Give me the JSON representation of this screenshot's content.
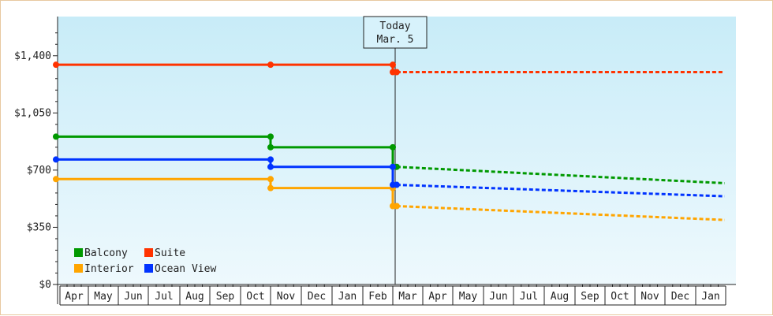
{
  "chart_data": {
    "type": "line",
    "y_ticks": [
      "$0",
      "$350",
      "$700",
      "$1,050",
      "$1,400"
    ],
    "ylim": [
      0,
      1640
    ],
    "x_labels": [
      "Apr",
      "May",
      "Jun",
      "Jul",
      "Aug",
      "Sep",
      "Oct",
      "Nov",
      "Dec",
      "Jan",
      "Feb",
      "Mar",
      "Apr",
      "May",
      "Jun",
      "Jul",
      "Aug",
      "Sep",
      "Oct",
      "Nov",
      "Dec",
      "Jan"
    ],
    "today": {
      "line1": "Today",
      "line2": "Mar. 5"
    },
    "legend_position": "bottom-left",
    "grid": false,
    "background_gradient": [
      "#c8ecf8",
      "#eef9fd"
    ],
    "series": [
      {
        "name": "Balcony",
        "color": "#009900",
        "historical": [
          {
            "x": "Apr 1",
            "y": 905
          },
          {
            "x": "Nov 1",
            "y": 905
          },
          {
            "x": "Nov 1",
            "y": 840
          },
          {
            "x": "Mar 1",
            "y": 840
          },
          {
            "x": "Mar 1",
            "y": 720
          },
          {
            "x": "Mar 5",
            "y": 720
          }
        ],
        "forecast": [
          {
            "x": "Mar 5",
            "y": 720
          },
          {
            "x": "Jan 31",
            "y": 620
          }
        ]
      },
      {
        "name": "Suite",
        "color": "#ff3300",
        "historical": [
          {
            "x": "Apr 1",
            "y": 1345
          },
          {
            "x": "Nov 1",
            "y": 1345
          },
          {
            "x": "Mar 1",
            "y": 1345
          },
          {
            "x": "Mar 1",
            "y": 1300
          },
          {
            "x": "Mar 5",
            "y": 1300
          }
        ],
        "forecast": [
          {
            "x": "Mar 5",
            "y": 1300
          },
          {
            "x": "Jan 31",
            "y": 1300
          }
        ]
      },
      {
        "name": "Interior",
        "color": "#ffa500",
        "historical": [
          {
            "x": "Apr 1",
            "y": 645
          },
          {
            "x": "Nov 1",
            "y": 645
          },
          {
            "x": "Nov 1",
            "y": 590
          },
          {
            "x": "Mar 1",
            "y": 590
          },
          {
            "x": "Mar 1",
            "y": 480
          },
          {
            "x": "Mar 5",
            "y": 480
          }
        ],
        "forecast": [
          {
            "x": "Mar 5",
            "y": 480
          },
          {
            "x": "Jan 31",
            "y": 395
          }
        ]
      },
      {
        "name": "Ocean View",
        "color": "#0033ff",
        "historical": [
          {
            "x": "Apr 1",
            "y": 765
          },
          {
            "x": "Nov 1",
            "y": 765
          },
          {
            "x": "Nov 1",
            "y": 720
          },
          {
            "x": "Mar 1",
            "y": 720
          },
          {
            "x": "Mar 1",
            "y": 610
          },
          {
            "x": "Mar 5",
            "y": 610
          }
        ],
        "forecast": [
          {
            "x": "Mar 5",
            "y": 610
          },
          {
            "x": "Jan 31",
            "y": 540
          }
        ]
      }
    ],
    "legend": [
      {
        "name": "Balcony",
        "color": "#009900"
      },
      {
        "name": "Suite",
        "color": "#ff3300"
      },
      {
        "name": "Interior",
        "color": "#ffa500"
      },
      {
        "name": "Ocean View",
        "color": "#0033ff"
      }
    ]
  }
}
